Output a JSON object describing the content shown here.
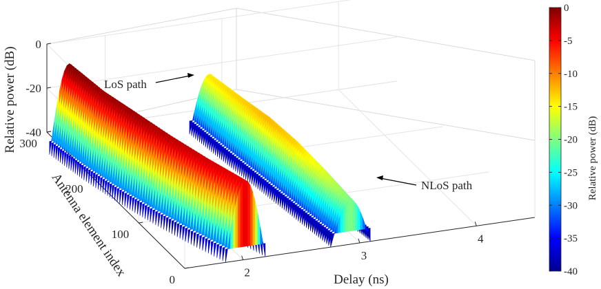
{
  "chart_data": {
    "type": "surface3d",
    "title": "",
    "xlabel": "Delay (ns)",
    "ylabel": "Antenna element index",
    "zlabel": "Relative power (dB)",
    "xlim": [
      1.5,
      4.5
    ],
    "ylim": [
      0,
      300
    ],
    "zlim": [
      -40,
      0
    ],
    "xticks": [
      "2",
      "3",
      "4"
    ],
    "yticks": [
      "0",
      "100",
      "200",
      "300"
    ],
    "zticks": [
      "-40",
      "-20",
      "0"
    ],
    "colorbar": {
      "label": "Relative power (dB)",
      "colormap": "jet",
      "range": [
        -40,
        0
      ],
      "ticks": [
        "0",
        "-5",
        "-10",
        "-15",
        "-20",
        "-25",
        "-30",
        "-35",
        "-40"
      ]
    },
    "grid": true,
    "series": [
      {
        "name": "LoS path",
        "ridge": [
          {
            "antenna": 0,
            "delay": 2.02,
            "power": -4
          },
          {
            "antenna": 50,
            "delay": 1.88,
            "power": -3
          },
          {
            "antenna": 100,
            "delay": 1.76,
            "power": -2
          },
          {
            "antenna": 150,
            "delay": 1.66,
            "power": -1
          },
          {
            "antenna": 200,
            "delay": 1.58,
            "power": -1
          },
          {
            "antenna": 256,
            "delay": 1.52,
            "power": 0
          }
        ]
      },
      {
        "name": "NLoS path",
        "ridge": [
          {
            "antenna": 0,
            "delay": 2.92,
            "power": -20
          },
          {
            "antenna": 50,
            "delay": 2.88,
            "power": -16
          },
          {
            "antenna": 100,
            "delay": 2.84,
            "power": -13
          },
          {
            "antenna": 150,
            "delay": 2.8,
            "power": -12
          },
          {
            "antenna": 200,
            "delay": 2.76,
            "power": -13
          },
          {
            "antenna": 256,
            "delay": 2.72,
            "power": -14
          }
        ]
      }
    ],
    "annotations": [
      {
        "text": "LoS path",
        "target": "LoS path"
      },
      {
        "text": "NLoS path",
        "target": "NLoS path"
      }
    ]
  }
}
